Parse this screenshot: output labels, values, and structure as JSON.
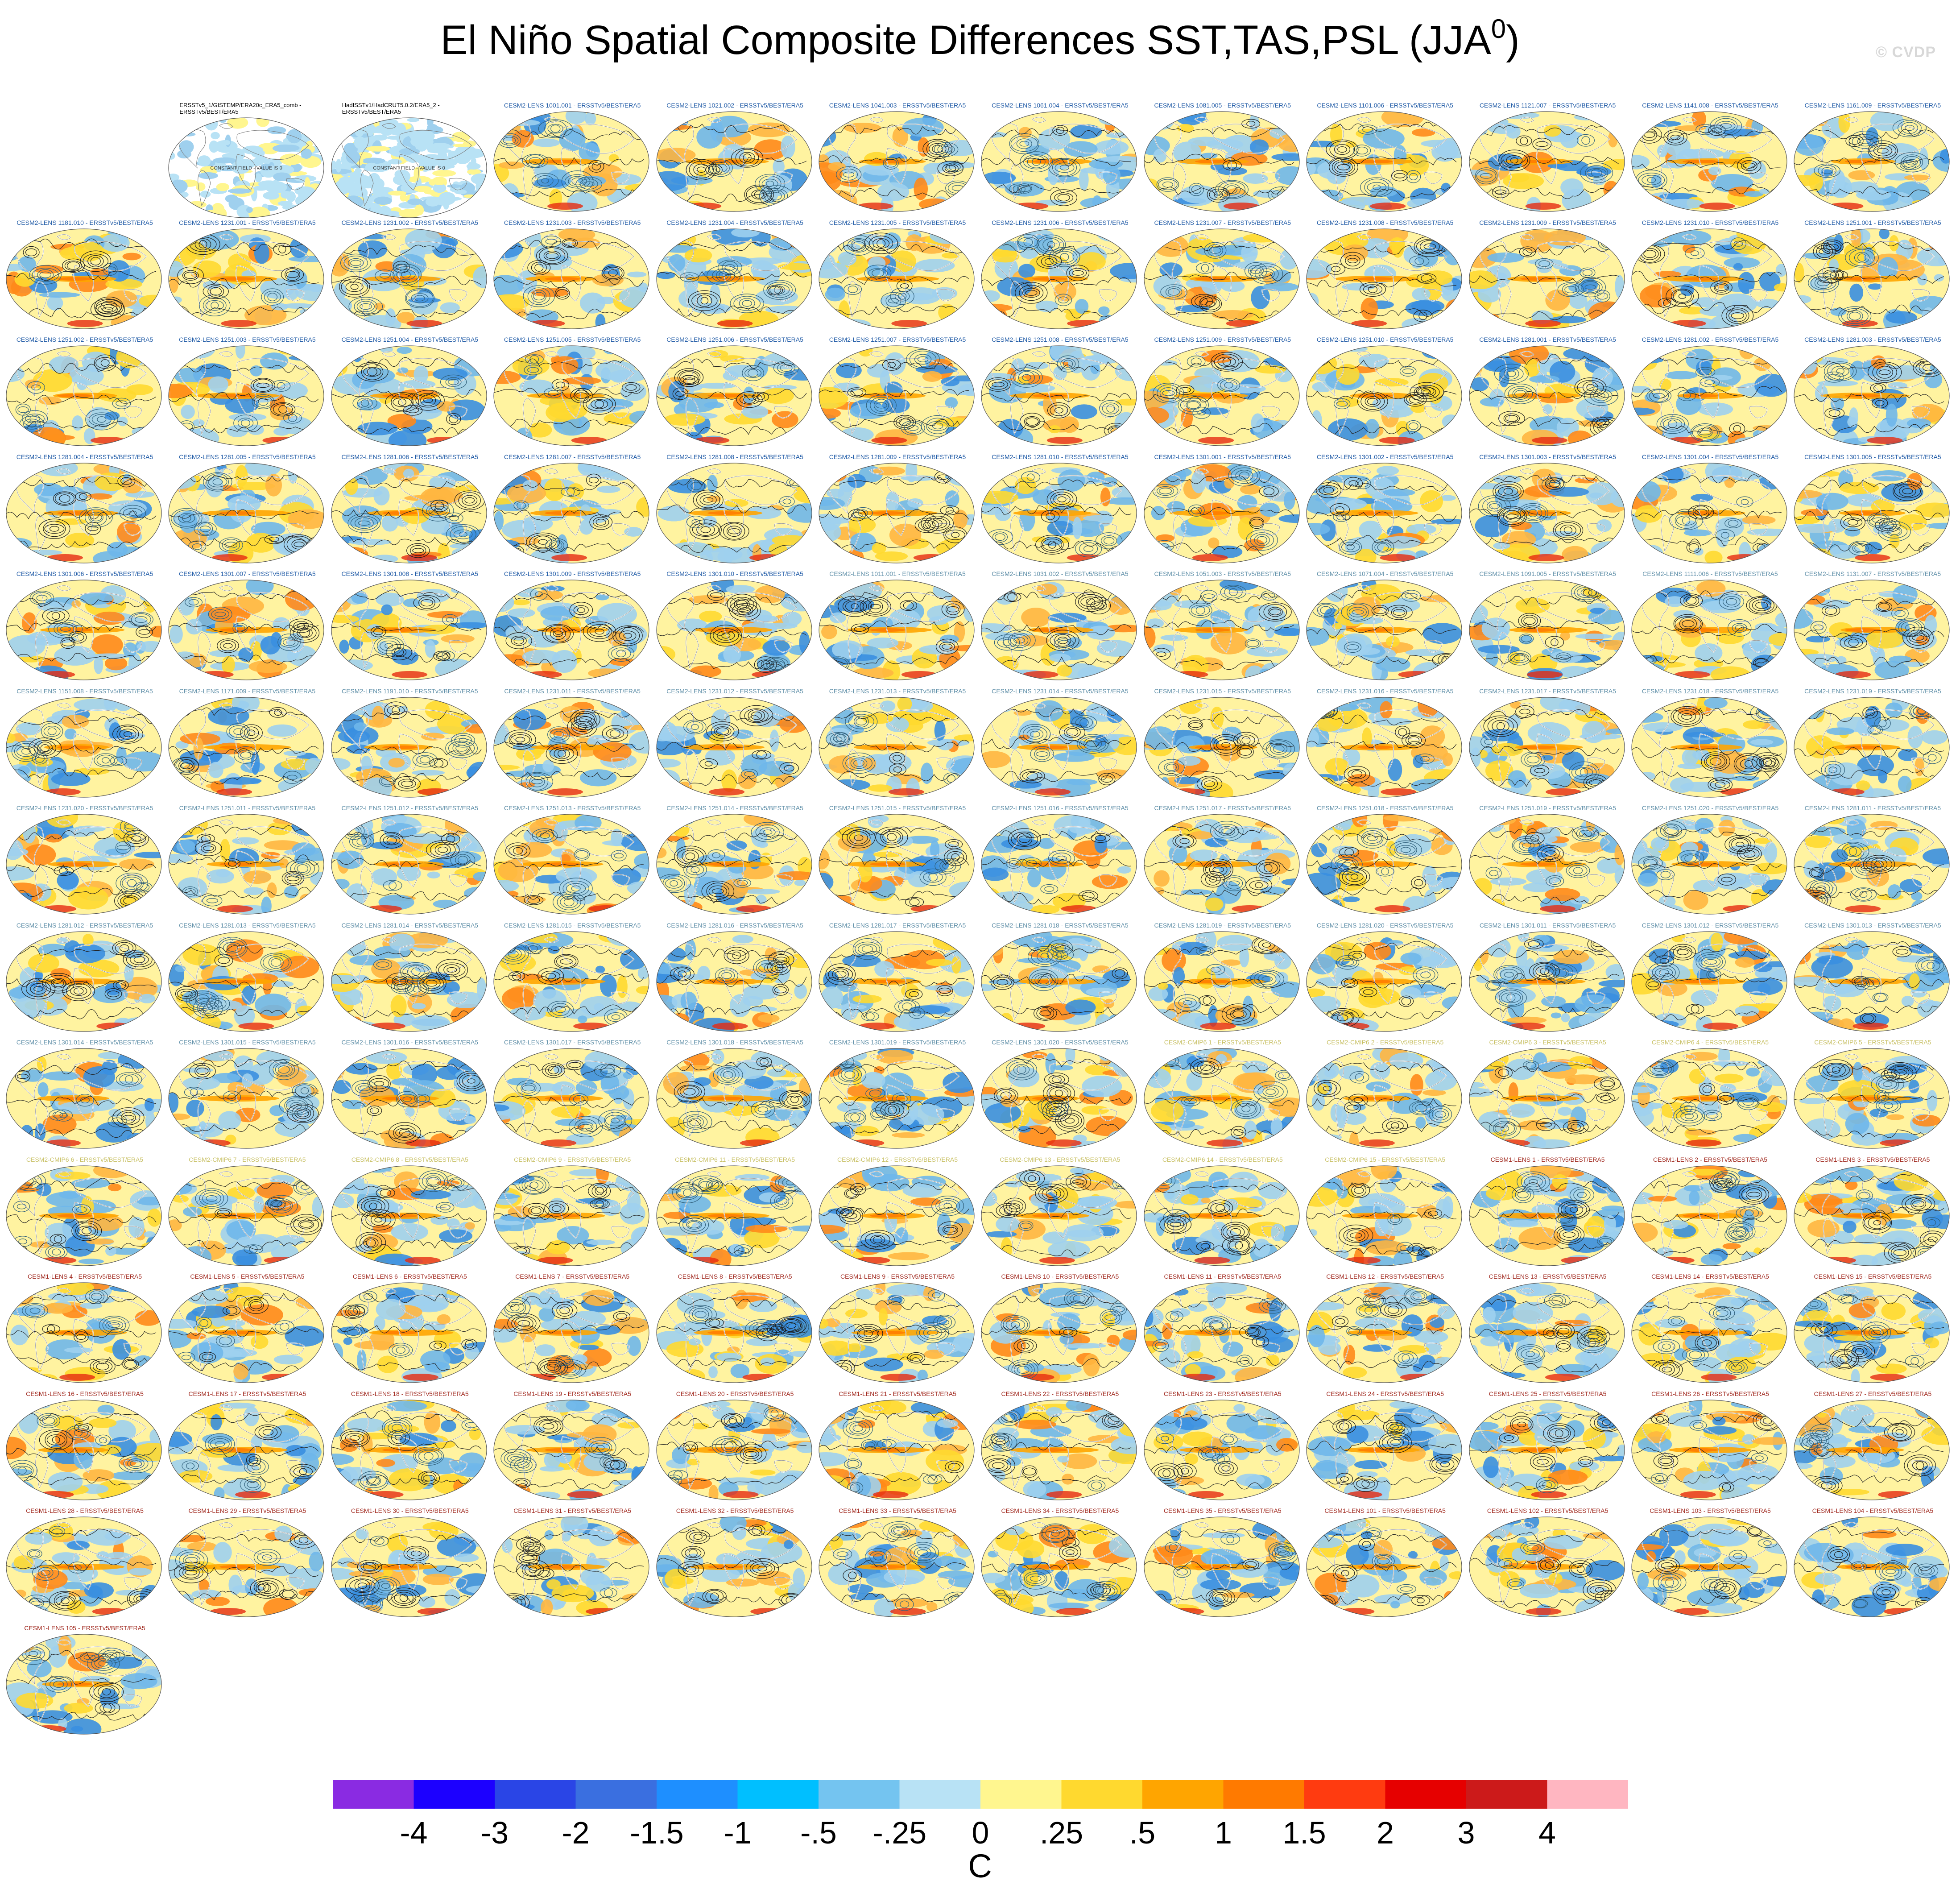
{
  "title": "El Niño Spatial Composite Differences SST,TAS,PSL (JJA",
  "title_superscript": "0",
  "title_close": ")",
  "watermark": "© CVDP",
  "chart_data": {
    "type": "heatmap",
    "description_units": "C",
    "colorbar": {
      "label_values": [
        "-4",
        "-3",
        "-2",
        "-1.5",
        "-1",
        "-.5",
        "-.25",
        "0",
        ".25",
        ".5",
        "1",
        "1.5",
        "2",
        "3",
        "4"
      ],
      "colors": [
        "#8a2be2",
        "#1c00ff",
        "#2a45e6",
        "#3a6fe0",
        "#1e8fff",
        "#00bfff",
        "#74c4f0",
        "#b8e2f5",
        "#fff68f",
        "#ffd92f",
        "#ffa500",
        "#ff7a00",
        "#ff3b10",
        "#e60000",
        "#cc1a1a",
        "#ffb6c1"
      ],
      "units": "C"
    },
    "panels": [
      {
        "title": "ERSSTv5_1/GISTEMP/ERA20c_ERA5_comb - ERSSTv5/BEST/ERA5",
        "kind": "obs",
        "annotation": "CONSTANT FIELD - VALUE IS 0"
      },
      {
        "title": "HadISSTv1/HadCRUT5.0.2/ERA5_2 - ERSSTv5/BEST/ERA5",
        "kind": "obs",
        "annotation": "CONSTANT FIELD - VALUE IS 0"
      },
      {
        "title": "CESM2-LENS 1001.001 - ERSSTv5/BEST/ERA5",
        "kind": "c2"
      },
      {
        "title": "CESM2-LENS 1021.002 - ERSSTv5/BEST/ERA5",
        "kind": "c2"
      },
      {
        "title": "CESM2-LENS 1041.003 - ERSSTv5/BEST/ERA5",
        "kind": "c2"
      },
      {
        "title": "CESM2-LENS 1061.004 - ERSSTv5/BEST/ERA5",
        "kind": "c2"
      },
      {
        "title": "CESM2-LENS 1081.005 - ERSSTv5/BEST/ERA5",
        "kind": "c2"
      },
      {
        "title": "CESM2-LENS 1101.006 - ERSSTv5/BEST/ERA5",
        "kind": "c2"
      },
      {
        "title": "CESM2-LENS 1121.007 - ERSSTv5/BEST/ERA5",
        "kind": "c2"
      },
      {
        "title": "CESM2-LENS 1141.008 - ERSSTv5/BEST/ERA5",
        "kind": "c2"
      },
      {
        "title": "CESM2-LENS 1161.009 - ERSSTv5/BEST/ERA5",
        "kind": "c2"
      },
      {
        "title": "CESM2-LENS 1181.010 - ERSSTv5/BEST/ERA5",
        "kind": "c2"
      },
      {
        "title": "CESM2-LENS 1231.001 - ERSSTv5/BEST/ERA5",
        "kind": "c2"
      },
      {
        "title": "CESM2-LENS 1231.002 - ERSSTv5/BEST/ERA5",
        "kind": "c2"
      },
      {
        "title": "CESM2-LENS 1231.003 - ERSSTv5/BEST/ERA5",
        "kind": "c2"
      },
      {
        "title": "CESM2-LENS 1231.004 - ERSSTv5/BEST/ERA5",
        "kind": "c2"
      },
      {
        "title": "CESM2-LENS 1231.005 - ERSSTv5/BEST/ERA5",
        "kind": "c2"
      },
      {
        "title": "CESM2-LENS 1231.006 - ERSSTv5/BEST/ERA5",
        "kind": "c2"
      },
      {
        "title": "CESM2-LENS 1231.007 - ERSSTv5/BEST/ERA5",
        "kind": "c2"
      },
      {
        "title": "CESM2-LENS 1231.008 - ERSSTv5/BEST/ERA5",
        "kind": "c2"
      },
      {
        "title": "CESM2-LENS 1231.009 - ERSSTv5/BEST/ERA5",
        "kind": "c2"
      },
      {
        "title": "CESM2-LENS 1231.010 - ERSSTv5/BEST/ERA5",
        "kind": "c2"
      },
      {
        "title": "CESM2-LENS 1251.001 - ERSSTv5/BEST/ERA5",
        "kind": "c2"
      },
      {
        "title": "CESM2-LENS 1251.002 - ERSSTv5/BEST/ERA5",
        "kind": "c2"
      },
      {
        "title": "CESM2-LENS 1251.003 - ERSSTv5/BEST/ERA5",
        "kind": "c2"
      },
      {
        "title": "CESM2-LENS 1251.004 - ERSSTv5/BEST/ERA5",
        "kind": "c2"
      },
      {
        "title": "CESM2-LENS 1251.005 - ERSSTv5/BEST/ERA5",
        "kind": "c2"
      },
      {
        "title": "CESM2-LENS 1251.006 - ERSSTv5/BEST/ERA5",
        "kind": "c2"
      },
      {
        "title": "CESM2-LENS 1251.007 - ERSSTv5/BEST/ERA5",
        "kind": "c2"
      },
      {
        "title": "CESM2-LENS 1251.008 - ERSSTv5/BEST/ERA5",
        "kind": "c2"
      },
      {
        "title": "CESM2-LENS 1251.009 - ERSSTv5/BEST/ERA5",
        "kind": "c2"
      },
      {
        "title": "CESM2-LENS 1251.010 - ERSSTv5/BEST/ERA5",
        "kind": "c2"
      },
      {
        "title": "CESM2-LENS 1281.001 - ERSSTv5/BEST/ERA5",
        "kind": "c2"
      },
      {
        "title": "CESM2-LENS 1281.002 - ERSSTv5/BEST/ERA5",
        "kind": "c2"
      },
      {
        "title": "CESM2-LENS 1281.003 - ERSSTv5/BEST/ERA5",
        "kind": "c2"
      },
      {
        "title": "CESM2-LENS 1281.004 - ERSSTv5/BEST/ERA5",
        "kind": "c2"
      },
      {
        "title": "CESM2-LENS 1281.005 - ERSSTv5/BEST/ERA5",
        "kind": "c2"
      },
      {
        "title": "CESM2-LENS 1281.006 - ERSSTv5/BEST/ERA5",
        "kind": "c2"
      },
      {
        "title": "CESM2-LENS 1281.007 - ERSSTv5/BEST/ERA5",
        "kind": "c2"
      },
      {
        "title": "CESM2-LENS 1281.008 - ERSSTv5/BEST/ERA5",
        "kind": "c2"
      },
      {
        "title": "CESM2-LENS 1281.009 - ERSSTv5/BEST/ERA5",
        "kind": "c2"
      },
      {
        "title": "CESM2-LENS 1281.010 - ERSSTv5/BEST/ERA5",
        "kind": "c2"
      },
      {
        "title": "CESM2-LENS 1301.001 - ERSSTv5/BEST/ERA5",
        "kind": "c2"
      },
      {
        "title": "CESM2-LENS 1301.002 - ERSSTv5/BEST/ERA5",
        "kind": "c2"
      },
      {
        "title": "CESM2-LENS 1301.003 - ERSSTv5/BEST/ERA5",
        "kind": "c2"
      },
      {
        "title": "CESM2-LENS 1301.004 - ERSSTv5/BEST/ERA5",
        "kind": "c2"
      },
      {
        "title": "CESM2-LENS 1301.005 - ERSSTv5/BEST/ERA5",
        "kind": "c2"
      },
      {
        "title": "CESM2-LENS 1301.006 - ERSSTv5/BEST/ERA5",
        "kind": "c2"
      },
      {
        "title": "CESM2-LENS 1301.007 - ERSSTv5/BEST/ERA5",
        "kind": "c2"
      },
      {
        "title": "CESM2-LENS 1301.008 - ERSSTv5/BEST/ERA5",
        "kind": "c2"
      },
      {
        "title": "CESM2-LENS 1301.009 - ERSSTv5/BEST/ERA5",
        "kind": "c2"
      },
      {
        "title": "CESM2-LENS 1301.010 - ERSSTv5/BEST/ERA5",
        "kind": "c2"
      },
      {
        "title": "CESM2-LENS 1011.001 - ERSSTv5/BEST/ERA5",
        "kind": "c2g"
      },
      {
        "title": "CESM2-LENS 1031.002 - ERSSTv5/BEST/ERA5",
        "kind": "c2g"
      },
      {
        "title": "CESM2-LENS 1051.003 - ERSSTv5/BEST/ERA5",
        "kind": "c2g"
      },
      {
        "title": "CESM2-LENS 1071.004 - ERSSTv5/BEST/ERA5",
        "kind": "c2g"
      },
      {
        "title": "CESM2-LENS 1091.005 - ERSSTv5/BEST/ERA5",
        "kind": "c2g"
      },
      {
        "title": "CESM2-LENS 1111.006 - ERSSTv5/BEST/ERA5",
        "kind": "c2g"
      },
      {
        "title": "CESM2-LENS 1131.007 - ERSSTv5/BEST/ERA5",
        "kind": "c2g"
      },
      {
        "title": "CESM2-LENS 1151.008 - ERSSTv5/BEST/ERA5",
        "kind": "c2g"
      },
      {
        "title": "CESM2-LENS 1171.009 - ERSSTv5/BEST/ERA5",
        "kind": "c2g"
      },
      {
        "title": "CESM2-LENS 1191.010 - ERSSTv5/BEST/ERA5",
        "kind": "c2g"
      },
      {
        "title": "CESM2-LENS 1231.011 - ERSSTv5/BEST/ERA5",
        "kind": "c2g"
      },
      {
        "title": "CESM2-LENS 1231.012 - ERSSTv5/BEST/ERA5",
        "kind": "c2g"
      },
      {
        "title": "CESM2-LENS 1231.013 - ERSSTv5/BEST/ERA5",
        "kind": "c2g"
      },
      {
        "title": "CESM2-LENS 1231.014 - ERSSTv5/BEST/ERA5",
        "kind": "c2g"
      },
      {
        "title": "CESM2-LENS 1231.015 - ERSSTv5/BEST/ERA5",
        "kind": "c2g"
      },
      {
        "title": "CESM2-LENS 1231.016 - ERSSTv5/BEST/ERA5",
        "kind": "c2g"
      },
      {
        "title": "CESM2-LENS 1231.017 - ERSSTv5/BEST/ERA5",
        "kind": "c2g"
      },
      {
        "title": "CESM2-LENS 1231.018 - ERSSTv5/BEST/ERA5",
        "kind": "c2g"
      },
      {
        "title": "CESM2-LENS 1231.019 - ERSSTv5/BEST/ERA5",
        "kind": "c2g"
      },
      {
        "title": "CESM2-LENS 1231.020 - ERSSTv5/BEST/ERA5",
        "kind": "c2g"
      },
      {
        "title": "CESM2-LENS 1251.011 - ERSSTv5/BEST/ERA5",
        "kind": "c2g"
      },
      {
        "title": "CESM2-LENS 1251.012 - ERSSTv5/BEST/ERA5",
        "kind": "c2g"
      },
      {
        "title": "CESM2-LENS 1251.013 - ERSSTv5/BEST/ERA5",
        "kind": "c2g"
      },
      {
        "title": "CESM2-LENS 1251.014 - ERSSTv5/BEST/ERA5",
        "kind": "c2g"
      },
      {
        "title": "CESM2-LENS 1251.015 - ERSSTv5/BEST/ERA5",
        "kind": "c2g"
      },
      {
        "title": "CESM2-LENS 1251.016 - ERSSTv5/BEST/ERA5",
        "kind": "c2g"
      },
      {
        "title": "CESM2-LENS 1251.017 - ERSSTv5/BEST/ERA5",
        "kind": "c2g"
      },
      {
        "title": "CESM2-LENS 1251.018 - ERSSTv5/BEST/ERA5",
        "kind": "c2g"
      },
      {
        "title": "CESM2-LENS 1251.019 - ERSSTv5/BEST/ERA5",
        "kind": "c2g"
      },
      {
        "title": "CESM2-LENS 1251.020 - ERSSTv5/BEST/ERA5",
        "kind": "c2g"
      },
      {
        "title": "CESM2-LENS 1281.011 - ERSSTv5/BEST/ERA5",
        "kind": "c2g"
      },
      {
        "title": "CESM2-LENS 1281.012 - ERSSTv5/BEST/ERA5",
        "kind": "c2g"
      },
      {
        "title": "CESM2-LENS 1281.013 - ERSSTv5/BEST/ERA5",
        "kind": "c2g"
      },
      {
        "title": "CESM2-LENS 1281.014 - ERSSTv5/BEST/ERA5",
        "kind": "c2g"
      },
      {
        "title": "CESM2-LENS 1281.015 - ERSSTv5/BEST/ERA5",
        "kind": "c2g"
      },
      {
        "title": "CESM2-LENS 1281.016 - ERSSTv5/BEST/ERA5",
        "kind": "c2g"
      },
      {
        "title": "CESM2-LENS 1281.017 - ERSSTv5/BEST/ERA5",
        "kind": "c2g"
      },
      {
        "title": "CESM2-LENS 1281.018 - ERSSTv5/BEST/ERA5",
        "kind": "c2g"
      },
      {
        "title": "CESM2-LENS 1281.019 - ERSSTv5/BEST/ERA5",
        "kind": "c2g"
      },
      {
        "title": "CESM2-LENS 1281.020 - ERSSTv5/BEST/ERA5",
        "kind": "c2g"
      },
      {
        "title": "CESM2-LENS 1301.011 - ERSSTv5/BEST/ERA5",
        "kind": "c2g"
      },
      {
        "title": "CESM2-LENS 1301.012 - ERSSTv5/BEST/ERA5",
        "kind": "c2g"
      },
      {
        "title": "CESM2-LENS 1301.013 - ERSSTv5/BEST/ERA5",
        "kind": "c2g"
      },
      {
        "title": "CESM2-LENS 1301.014 - ERSSTv5/BEST/ERA5",
        "kind": "c2g"
      },
      {
        "title": "CESM2-LENS 1301.015 - ERSSTv5/BEST/ERA5",
        "kind": "c2g"
      },
      {
        "title": "CESM2-LENS 1301.016 - ERSSTv5/BEST/ERA5",
        "kind": "c2g"
      },
      {
        "title": "CESM2-LENS 1301.017 - ERSSTv5/BEST/ERA5",
        "kind": "c2g"
      },
      {
        "title": "CESM2-LENS 1301.018 - ERSSTv5/BEST/ERA5",
        "kind": "c2g"
      },
      {
        "title": "CESM2-LENS 1301.019 - ERSSTv5/BEST/ERA5",
        "kind": "c2g"
      },
      {
        "title": "CESM2-LENS 1301.020 - ERSSTv5/BEST/ERA5",
        "kind": "c2g"
      },
      {
        "title": "CESM2-CMIP6 1 - ERSSTv5/BEST/ERA5",
        "kind": "cm"
      },
      {
        "title": "CESM2-CMIP6 2 - ERSSTv5/BEST/ERA5",
        "kind": "cm"
      },
      {
        "title": "CESM2-CMIP6 3 - ERSSTv5/BEST/ERA5",
        "kind": "cm"
      },
      {
        "title": "CESM2-CMIP6 4 - ERSSTv5/BEST/ERA5",
        "kind": "cm"
      },
      {
        "title": "CESM2-CMIP6 5 - ERSSTv5/BEST/ERA5",
        "kind": "cm"
      },
      {
        "title": "CESM2-CMIP6 6 - ERSSTv5/BEST/ERA5",
        "kind": "cm"
      },
      {
        "title": "CESM2-CMIP6 7 - ERSSTv5/BEST/ERA5",
        "kind": "cm"
      },
      {
        "title": "CESM2-CMIP6 8 - ERSSTv5/BEST/ERA5",
        "kind": "cm"
      },
      {
        "title": "CESM2-CMIP6 9 - ERSSTv5/BEST/ERA5",
        "kind": "cm"
      },
      {
        "title": "CESM2-CMIP6 11 - ERSSTv5/BEST/ERA5",
        "kind": "cm"
      },
      {
        "title": "CESM2-CMIP6 12 - ERSSTv5/BEST/ERA5",
        "kind": "cm"
      },
      {
        "title": "CESM2-CMIP6 13 - ERSSTv5/BEST/ERA5",
        "kind": "cm"
      },
      {
        "title": "CESM2-CMIP6 14 - ERSSTv5/BEST/ERA5",
        "kind": "cm"
      },
      {
        "title": "CESM2-CMIP6 15 - ERSSTv5/BEST/ERA5",
        "kind": "cm"
      },
      {
        "title": "CESM1-LENS 1 - ERSSTv5/BEST/ERA5",
        "kind": "c1"
      },
      {
        "title": "CESM1-LENS 2 - ERSSTv5/BEST/ERA5",
        "kind": "c1"
      },
      {
        "title": "CESM1-LENS 3 - ERSSTv5/BEST/ERA5",
        "kind": "c1"
      },
      {
        "title": "CESM1-LENS 4 - ERSSTv5/BEST/ERA5",
        "kind": "c1"
      },
      {
        "title": "CESM1-LENS 5 - ERSSTv5/BEST/ERA5",
        "kind": "c1"
      },
      {
        "title": "CESM1-LENS 6 - ERSSTv5/BEST/ERA5",
        "kind": "c1"
      },
      {
        "title": "CESM1-LENS 7 - ERSSTv5/BEST/ERA5",
        "kind": "c1"
      },
      {
        "title": "CESM1-LENS 8 - ERSSTv5/BEST/ERA5",
        "kind": "c1"
      },
      {
        "title": "CESM1-LENS 9 - ERSSTv5/BEST/ERA5",
        "kind": "c1"
      },
      {
        "title": "CESM1-LENS 10 - ERSSTv5/BEST/ERA5",
        "kind": "c1"
      },
      {
        "title": "CESM1-LENS 11 - ERSSTv5/BEST/ERA5",
        "kind": "c1"
      },
      {
        "title": "CESM1-LENS 12 - ERSSTv5/BEST/ERA5",
        "kind": "c1"
      },
      {
        "title": "CESM1-LENS 13 - ERSSTv5/BEST/ERA5",
        "kind": "c1"
      },
      {
        "title": "CESM1-LENS 14 - ERSSTv5/BEST/ERA5",
        "kind": "c1"
      },
      {
        "title": "CESM1-LENS 15 - ERSSTv5/BEST/ERA5",
        "kind": "c1"
      },
      {
        "title": "CESM1-LENS 16 - ERSSTv5/BEST/ERA5",
        "kind": "c1"
      },
      {
        "title": "CESM1-LENS 17 - ERSSTv5/BEST/ERA5",
        "kind": "c1"
      },
      {
        "title": "CESM1-LENS 18 - ERSSTv5/BEST/ERA5",
        "kind": "c1"
      },
      {
        "title": "CESM1-LENS 19 - ERSSTv5/BEST/ERA5",
        "kind": "c1"
      },
      {
        "title": "CESM1-LENS 20 - ERSSTv5/BEST/ERA5",
        "kind": "c1"
      },
      {
        "title": "CESM1-LENS 21 - ERSSTv5/BEST/ERA5",
        "kind": "c1"
      },
      {
        "title": "CESM1-LENS 22 - ERSSTv5/BEST/ERA5",
        "kind": "c1"
      },
      {
        "title": "CESM1-LENS 23 - ERSSTv5/BEST/ERA5",
        "kind": "c1"
      },
      {
        "title": "CESM1-LENS 24 - ERSSTv5/BEST/ERA5",
        "kind": "c1"
      },
      {
        "title": "CESM1-LENS 25 - ERSSTv5/BEST/ERA5",
        "kind": "c1"
      },
      {
        "title": "CESM1-LENS 26 - ERSSTv5/BEST/ERA5",
        "kind": "c1"
      },
      {
        "title": "CESM1-LENS 27 - ERSSTv5/BEST/ERA5",
        "kind": "c1"
      },
      {
        "title": "CESM1-LENS 28 - ERSSTv5/BEST/ERA5",
        "kind": "c1"
      },
      {
        "title": "CESM1-LENS 29 - ERSSTv5/BEST/ERA5",
        "kind": "c1"
      },
      {
        "title": "CESM1-LENS 30 - ERSSTv5/BEST/ERA5",
        "kind": "c1"
      },
      {
        "title": "CESM1-LENS 31 - ERSSTv5/BEST/ERA5",
        "kind": "c1"
      },
      {
        "title": "CESM1-LENS 32 - ERSSTv5/BEST/ERA5",
        "kind": "c1"
      },
      {
        "title": "CESM1-LENS 33 - ERSSTv5/BEST/ERA5",
        "kind": "c1"
      },
      {
        "title": "CESM1-LENS 34 - ERSSTv5/BEST/ERA5",
        "kind": "c1"
      },
      {
        "title": "CESM1-LENS 35 - ERSSTv5/BEST/ERA5",
        "kind": "c1"
      },
      {
        "title": "CESM1-LENS 101 - ERSSTv5/BEST/ERA5",
        "kind": "c1"
      },
      {
        "title": "CESM1-LENS 102 - ERSSTv5/BEST/ERA5",
        "kind": "c1"
      },
      {
        "title": "CESM1-LENS 103 - ERSSTv5/BEST/ERA5",
        "kind": "c1"
      },
      {
        "title": "CESM1-LENS 104 - ERSSTv5/BEST/ERA5",
        "kind": "c1"
      },
      {
        "title": "CESM1-LENS 105 - ERSSTv5/BEST/ERA5",
        "kind": "c1"
      }
    ]
  },
  "title_colors": {
    "obs": "#000000",
    "c2": "#1f5aa6",
    "c2g": "#5f8fa8",
    "cm": "#c8c064",
    "c1": "#a0281e"
  }
}
